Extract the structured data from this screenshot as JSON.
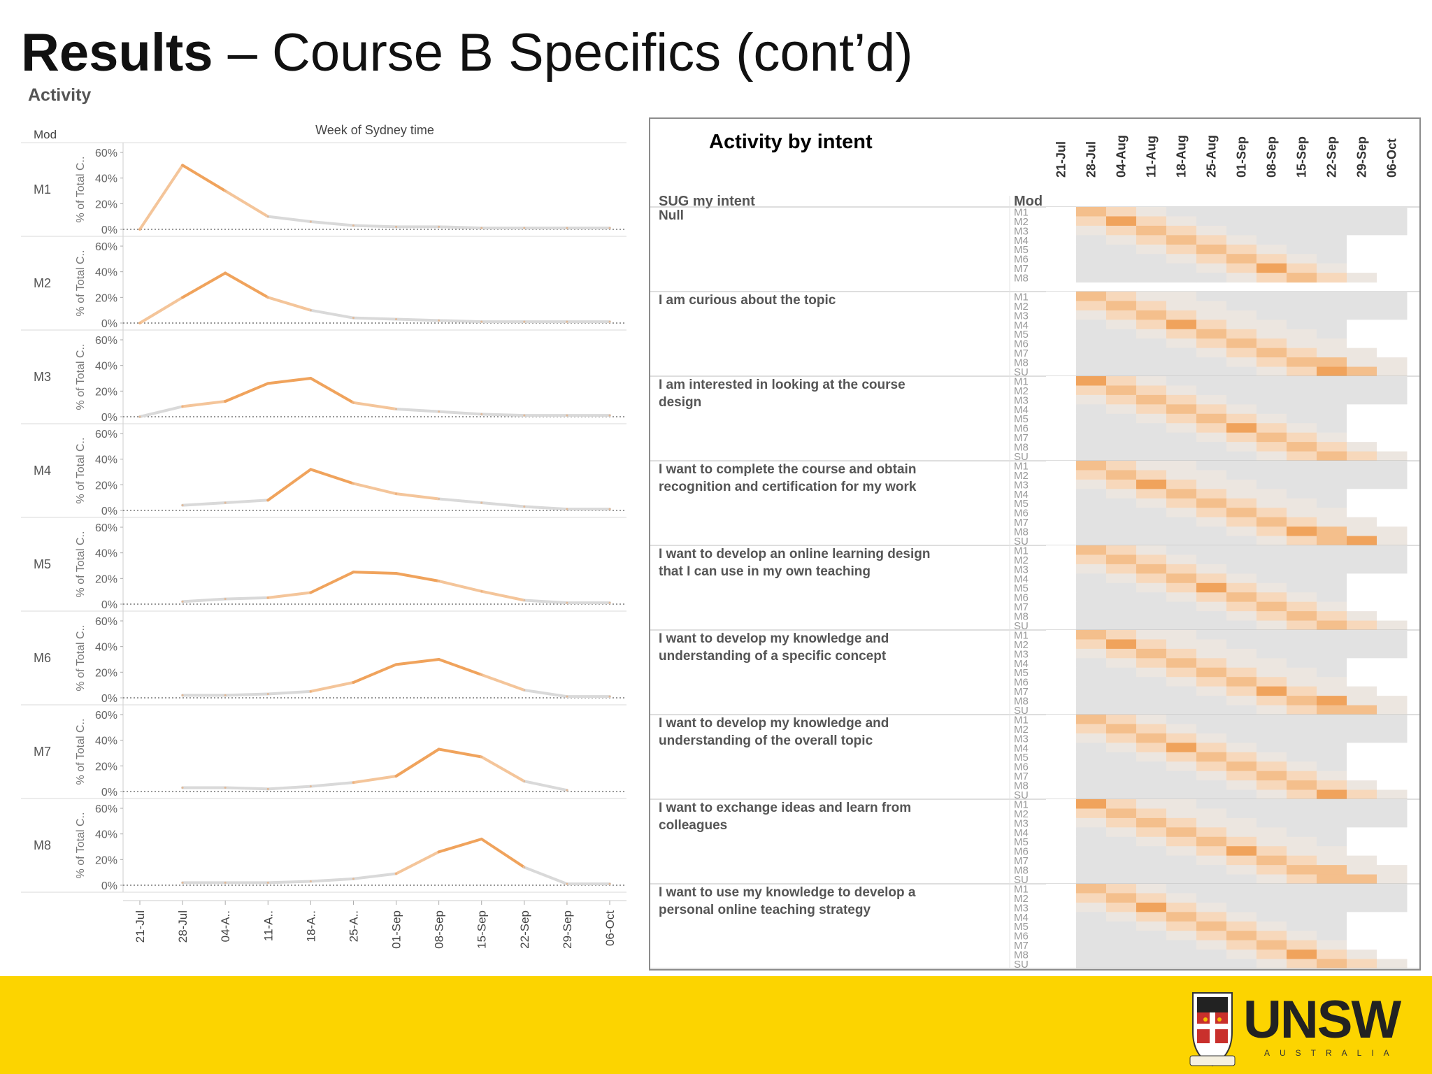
{
  "slide": {
    "title_bold": "Results",
    "title_rest": " – Course B Specifics (cont’d)"
  },
  "logo": {
    "wordmark": "UNSW",
    "subtext": "AUSTRALIA"
  },
  "colors": {
    "accent_orange": "#f0a35c",
    "light_orange": "#f6cfa8",
    "grey_line": "#d0d0d0",
    "footer_yellow": "#fcd400"
  },
  "chart_data": [
    {
      "type": "line",
      "title": "Activity",
      "col_header": "Mod",
      "xlabel": "Week of Sydney time",
      "ylabel": "% of Total C..",
      "ylim": [
        0,
        60
      ],
      "y_ticks": [
        "0%",
        "20%",
        "40%",
        "60%"
      ],
      "x_ticks": [
        "21-Jul",
        "28-Jul",
        "04-A..",
        "11-A..",
        "18-A..",
        "25-A..",
        "01-Sep",
        "08-Sep",
        "15-Sep",
        "22-Sep",
        "29-Sep",
        "06-Oct"
      ],
      "panels": [
        {
          "name": "M1",
          "values": [
            0,
            50,
            30,
            10,
            6,
            3,
            2,
            2,
            1,
            1,
            1,
            1
          ]
        },
        {
          "name": "M2",
          "values": [
            0,
            20,
            39,
            20,
            10,
            4,
            3,
            2,
            1,
            1,
            1,
            1
          ]
        },
        {
          "name": "M3",
          "values": [
            0,
            8,
            12,
            26,
            30,
            11,
            6,
            4,
            2,
            1,
            1,
            1
          ]
        },
        {
          "name": "M4",
          "values": [
            null,
            4,
            6,
            8,
            32,
            21,
            13,
            9,
            6,
            3,
            1,
            1
          ]
        },
        {
          "name": "M5",
          "values": [
            null,
            2,
            4,
            5,
            9,
            25,
            24,
            18,
            10,
            3,
            1,
            1
          ]
        },
        {
          "name": "M6",
          "values": [
            null,
            2,
            2,
            3,
            5,
            12,
            26,
            30,
            18,
            6,
            1,
            1
          ]
        },
        {
          "name": "M7",
          "values": [
            null,
            3,
            3,
            2,
            4,
            7,
            12,
            33,
            27,
            8,
            1,
            null
          ]
        },
        {
          "name": "M8",
          "values": [
            null,
            2,
            2,
            2,
            3,
            5,
            9,
            26,
            36,
            14,
            1,
            1
          ]
        }
      ]
    },
    {
      "type": "heatmap",
      "title": "Activity by intent",
      "row_header": "SUG my intent",
      "mod_header": "Mod",
      "columns": [
        "21-Jul",
        "28-Jul",
        "04-Aug",
        "11-Aug",
        "18-Aug",
        "25-Aug",
        "01-Sep",
        "08-Sep",
        "15-Sep",
        "22-Sep",
        "29-Sep",
        "06-Oct"
      ],
      "mods": [
        "M1",
        "M2",
        "M3",
        "M4",
        "M5",
        "M6",
        "M7",
        "M8",
        "SU"
      ],
      "groups": [
        {
          "label": "Null",
          "mods_shown": 8
        },
        {
          "label": "I am curious about the topic"
        },
        {
          "label": "I am interested in looking at the course design"
        },
        {
          "label": "I want to complete the course and obtain recognition and certification for my work"
        },
        {
          "label": "I want to develop an online learning design that I can use in my own teaching"
        },
        {
          "label": "I want to develop my knowledge and understanding of a specific concept"
        },
        {
          "label": "I want to develop my knowledge and understanding of the overall topic"
        },
        {
          "label": "I want to exchange ideas and learn from colleagues"
        },
        {
          "label": "I want to use my knowledge to develop a personal online teaching strategy"
        }
      ]
    }
  ]
}
